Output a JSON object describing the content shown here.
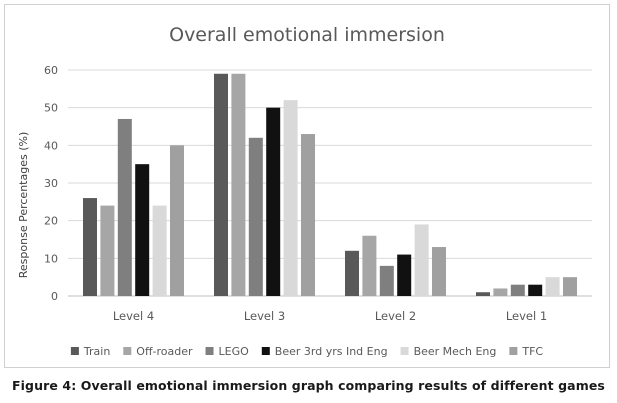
{
  "chart_data": {
    "type": "bar",
    "title": "Overall emotional immersion",
    "xlabel": "",
    "ylabel": "Response Percentages (%)",
    "ylim": [
      0,
      60
    ],
    "yticks": [
      0,
      10,
      20,
      30,
      40,
      50,
      60
    ],
    "grid": true,
    "legend_position": "bottom",
    "categories": [
      "Level 4",
      "Level 3",
      "Level 2",
      "Level 1"
    ],
    "series": [
      {
        "name": "Train",
        "color": "#595959",
        "values": [
          26,
          59,
          12,
          1
        ]
      },
      {
        "name": "Off-roader",
        "color": "#a6a6a6",
        "values": [
          24,
          59,
          16,
          2
        ]
      },
      {
        "name": "LEGO",
        "color": "#7f7f7f",
        "values": [
          47,
          42,
          8,
          3
        ]
      },
      {
        "name": "Beer 3rd yrs Ind Eng",
        "color": "#111111",
        "values": [
          35,
          50,
          11,
          3
        ]
      },
      {
        "name": "Beer Mech Eng",
        "color": "#d9d9d9",
        "values": [
          24,
          52,
          19,
          5
        ]
      },
      {
        "name": "TFC",
        "color": "#a0a0a0",
        "values": [
          40,
          43,
          13,
          5
        ]
      }
    ]
  },
  "caption": "Figure 4: Overall emotional immersion graph comparing results of different games"
}
